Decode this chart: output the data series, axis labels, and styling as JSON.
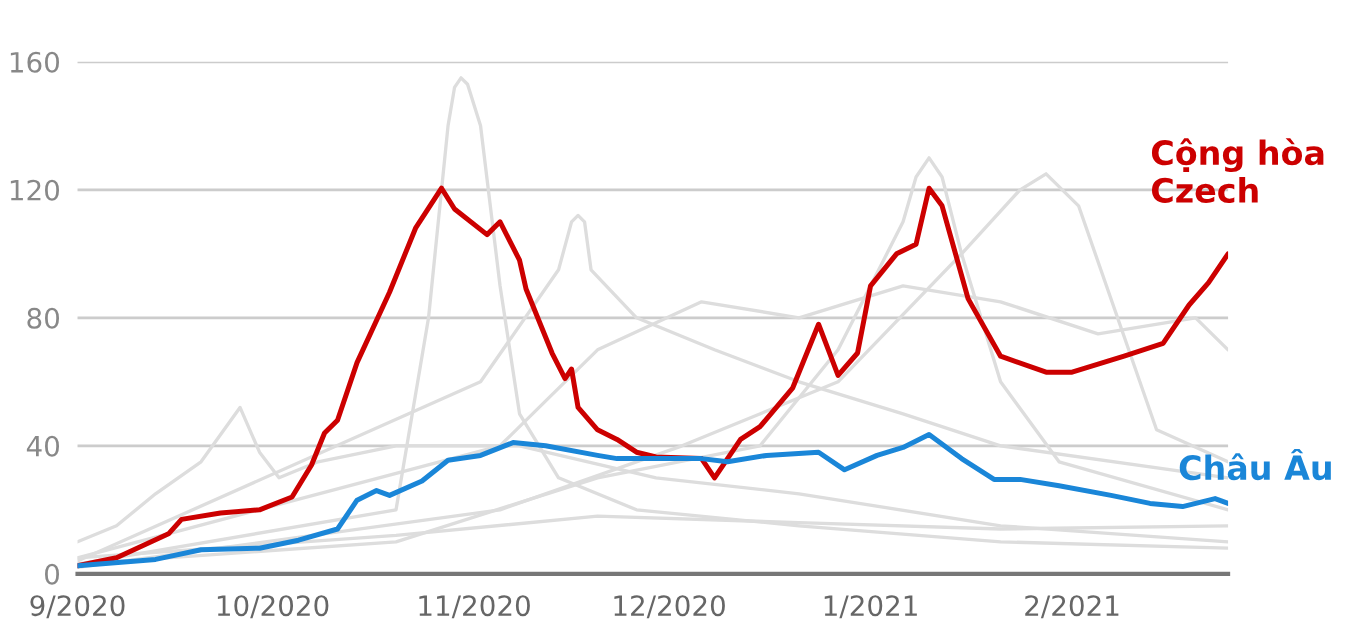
{
  "chart_data": {
    "type": "line",
    "xlim": [
      "2020-09-01",
      "2021-02-25"
    ],
    "xticks": [
      {
        "value": "2020-09-01",
        "label": "9/2020"
      },
      {
        "value": "2020-10-01",
        "label": "10/2020"
      },
      {
        "value": "2020-11-01",
        "label": "11/2020"
      },
      {
        "value": "2020-12-01",
        "label": "12/2020"
      },
      {
        "value": "2021-01-01",
        "label": "1/2021"
      },
      {
        "value": "2021-02-01",
        "label": "2/2021"
      }
    ],
    "ylim": [
      0,
      160
    ],
    "yticks": [
      0,
      40,
      80,
      120,
      160
    ],
    "grid": "y",
    "legend": false,
    "series": [
      {
        "color": "#dddddd",
        "x": [
          "2020-09-01",
          "2020-10-20",
          "2020-10-25",
          "2020-10-28",
          "2020-10-29",
          "2020-10-30",
          "2020-10-31",
          "2020-11-02",
          "2020-11-05",
          "2020-11-08",
          "2020-11-14",
          "2020-11-26",
          "2020-12-21",
          "2021-01-21",
          "2021-02-25"
        ],
        "values": [
          3,
          20,
          80,
          140,
          152,
          155,
          153,
          140,
          90,
          50,
          30,
          20,
          15,
          10,
          8
        ]
      },
      {
        "color": "#dddddd",
        "x": [
          "2020-09-01",
          "2020-09-07",
          "2020-09-13",
          "2020-09-20",
          "2020-09-26",
          "2020-09-29",
          "2020-10-02",
          "2020-10-08",
          "2020-10-20",
          "2020-11-08",
          "2020-11-29",
          "2020-12-21",
          "2021-01-21",
          "2021-02-25"
        ],
        "values": [
          10,
          15,
          25,
          35,
          52,
          38,
          30,
          35,
          40,
          40,
          30,
          25,
          15,
          10
        ]
      },
      {
        "color": "#dddddd",
        "x": [
          "2020-09-01",
          "2020-10-20",
          "2020-11-20",
          "2020-12-15",
          "2020-12-27",
          "2021-01-06",
          "2021-01-08",
          "2021-01-10",
          "2021-01-12",
          "2021-01-15",
          "2021-01-21",
          "2021-01-30",
          "2021-02-25"
        ],
        "values": [
          3,
          10,
          30,
          40,
          70,
          110,
          124,
          130,
          124,
          100,
          60,
          35,
          20
        ]
      },
      {
        "color": "#dddddd",
        "x": [
          "2020-09-01",
          "2020-11-05",
          "2020-12-03",
          "2020-12-27",
          "2021-01-15",
          "2021-01-24",
          "2021-01-28",
          "2021-02-02",
          "2021-02-08",
          "2021-02-14",
          "2021-02-25"
        ],
        "values": [
          2,
          20,
          40,
          60,
          100,
          120,
          125,
          115,
          80,
          45,
          35
        ]
      },
      {
        "color": "#dddddd",
        "x": [
          "2020-09-01",
          "2020-11-05",
          "2020-11-20",
          "2020-12-06",
          "2020-12-21",
          "2021-01-06",
          "2021-01-21",
          "2021-02-05",
          "2021-02-20",
          "2021-02-25"
        ],
        "values": [
          5,
          40,
          70,
          85,
          80,
          90,
          85,
          75,
          80,
          70
        ]
      },
      {
        "color": "#dddddd",
        "x": [
          "2020-09-01",
          "2020-11-02",
          "2020-11-14",
          "2020-11-16",
          "2020-11-17",
          "2020-11-18",
          "2020-11-19",
          "2020-11-26",
          "2020-12-08",
          "2020-12-21",
          "2021-01-06",
          "2021-01-21",
          "2021-02-25"
        ],
        "values": [
          4,
          60,
          95,
          110,
          112,
          110,
          95,
          80,
          70,
          60,
          50,
          40,
          30
        ]
      },
      {
        "color": "#dddddd",
        "x": [
          "2020-09-01",
          "2020-10-20",
          "2020-11-20",
          "2020-12-21",
          "2021-01-21",
          "2021-02-25"
        ],
        "values": [
          5,
          12,
          18,
          16,
          14,
          15
        ]
      },
      {
        "name": "Cộng hòa Czech",
        "color": "#cc0000",
        "x": [
          "2020-09-01",
          "2020-09-07",
          "2020-09-15",
          "2020-09-17",
          "2020-09-23",
          "2020-09-29",
          "2020-10-04",
          "2020-10-07",
          "2020-10-09",
          "2020-10-11",
          "2020-10-14",
          "2020-10-19",
          "2020-10-23",
          "2020-10-27",
          "2020-10-29",
          "2020-11-03",
          "2020-11-05",
          "2020-11-08",
          "2020-11-09",
          "2020-11-13",
          "2020-11-15",
          "2020-11-16",
          "2020-11-17",
          "2020-11-20",
          "2020-11-23",
          "2020-11-26",
          "2020-11-29",
          "2020-12-06",
          "2020-12-08",
          "2020-12-12",
          "2020-12-15",
          "2020-12-20",
          "2020-12-24",
          "2020-12-27",
          "2020-12-30",
          "2021-01-01",
          "2021-01-05",
          "2021-01-08",
          "2021-01-10",
          "2021-01-12",
          "2021-01-16",
          "2021-01-21",
          "2021-01-28",
          "2021-02-01",
          "2021-02-09",
          "2021-02-15",
          "2021-02-19",
          "2021-02-22",
          "2021-02-25"
        ],
        "values": [
          2.5,
          5,
          12.5,
          17,
          19,
          20,
          24,
          34,
          44,
          48,
          66,
          88,
          108,
          120.5,
          114,
          106,
          110,
          98,
          89,
          69,
          61,
          64,
          52,
          45,
          42,
          38,
          36.5,
          36,
          30,
          42,
          46,
          58,
          78,
          62,
          69,
          90,
          100,
          103,
          120.5,
          115,
          86,
          68,
          63,
          63,
          68,
          72,
          84,
          91,
          100
        ]
      },
      {
        "name": "Châu Âu",
        "color": "#1a86d8",
        "x": [
          "2020-09-01",
          "2020-09-13",
          "2020-09-20",
          "2020-09-29",
          "2020-10-05",
          "2020-10-11",
          "2020-10-14",
          "2020-10-17",
          "2020-10-19",
          "2020-10-24",
          "2020-10-28",
          "2020-11-02",
          "2020-11-07",
          "2020-11-12",
          "2020-11-20",
          "2020-11-23",
          "2020-11-29",
          "2020-12-06",
          "2020-12-10",
          "2020-12-16",
          "2020-12-24",
          "2020-12-28",
          "2021-01-02",
          "2021-01-06",
          "2021-01-10",
          "2021-01-15",
          "2021-01-20",
          "2021-01-24",
          "2021-01-30",
          "2021-02-07",
          "2021-02-13",
          "2021-02-18",
          "2021-02-23",
          "2021-02-25"
        ],
        "values": [
          2.5,
          4.5,
          7.5,
          8,
          10.5,
          14,
          23,
          26,
          24.5,
          29,
          35.5,
          37,
          41,
          40,
          37,
          36,
          36,
          36,
          35,
          37,
          38,
          32.5,
          37,
          39.5,
          43.5,
          36,
          29.5,
          29.5,
          27.5,
          24.5,
          22,
          21,
          23.5,
          22
        ]
      }
    ]
  }
}
